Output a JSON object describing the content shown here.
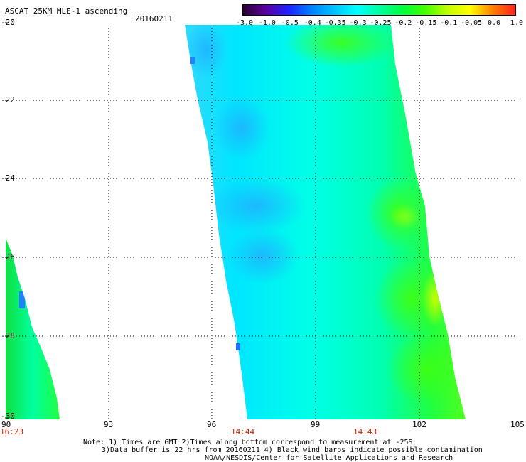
{
  "header": {
    "title": "ASCAT 25KM MLE-1 ascending",
    "date": "20160211"
  },
  "colorbar": {
    "labels": [
      "-3.0",
      "-1.0",
      "-0.5",
      "-0.4",
      "-0.35",
      "-0.3",
      "-0.25",
      "-0.2",
      "-0.15",
      "-0.1",
      "-0.05",
      "0.0",
      "1.0"
    ],
    "colors": [
      "#2a0030",
      "#5a00a0",
      "#2020ff",
      "#0080ff",
      "#00c0ff",
      "#00ffff",
      "#00ffa0",
      "#00ff40",
      "#40ff00",
      "#c0ff00",
      "#ffff00",
      "#ff8000",
      "#ff2020"
    ]
  },
  "map": {
    "x_labels": [
      "90",
      "93",
      "96",
      "99",
      "102",
      "105"
    ],
    "y_labels": [
      "-20",
      "-22",
      "-24",
      "-26",
      "-28",
      "-30"
    ],
    "time_labels": [
      "16:23",
      "14:44",
      "14:43"
    ]
  },
  "notes": {
    "line1": "Note: 1) Times are GMT 2)Times along bottom correspond to measurement at -25S",
    "line2": "3)Data buffer is 22 hrs from 20160211 4) Black wind barbs indicate possible contamination",
    "line3": "NOAA/NESDIS/Center for Satellite Applications and Research"
  }
}
